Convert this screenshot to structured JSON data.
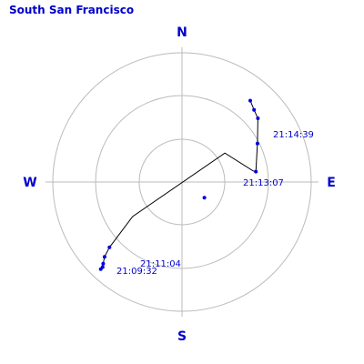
{
  "title": "South San Francisco",
  "colors": {
    "text": "#0000cc",
    "track": "#000000",
    "points": "#0000dd",
    "grid": "#bbbbbb"
  },
  "chart_data": {
    "type": "polar-sky-track",
    "title": "South San Francisco",
    "directions": {
      "north": "N",
      "south": "S",
      "east": "E",
      "west": "W"
    },
    "rings_elevation_deg": [
      0,
      30,
      60
    ],
    "grid": true,
    "track": [
      {
        "az": 223,
        "el": 7
      },
      {
        "az": 223,
        "el": 9
      },
      {
        "az": 224,
        "el": 11
      },
      {
        "az": 226,
        "el": 15
      },
      {
        "az": 228,
        "el": 22
      },
      {
        "az": 235,
        "el": 48
      },
      {
        "az": 56,
        "el": 54
      },
      {
        "az": 81,
        "el": 40
      },
      {
        "az": 82,
        "el": 38
      },
      {
        "az": 63,
        "el": 31
      },
      {
        "az": 50,
        "el": 21
      },
      {
        "az": 45,
        "el": 19
      },
      {
        "az": 40,
        "el": 16
      }
    ],
    "points": [
      {
        "az": 223,
        "el": 7
      },
      {
        "az": 223,
        "el": 9
      },
      {
        "az": 224,
        "el": 11
      },
      {
        "az": 226,
        "el": 15
      },
      {
        "az": 228,
        "el": 22
      },
      {
        "az": 125,
        "el": 71
      },
      {
        "az": 82,
        "el": 38
      },
      {
        "az": 63,
        "el": 31
      },
      {
        "az": 50,
        "el": 21
      },
      {
        "az": 45,
        "el": 19
      },
      {
        "az": 40,
        "el": 16
      }
    ],
    "annotations": [
      {
        "label": "21:09:32"
      },
      {
        "label": "21:11:04"
      },
      {
        "label": "21:13:07"
      },
      {
        "label": "21:14:39"
      }
    ]
  }
}
